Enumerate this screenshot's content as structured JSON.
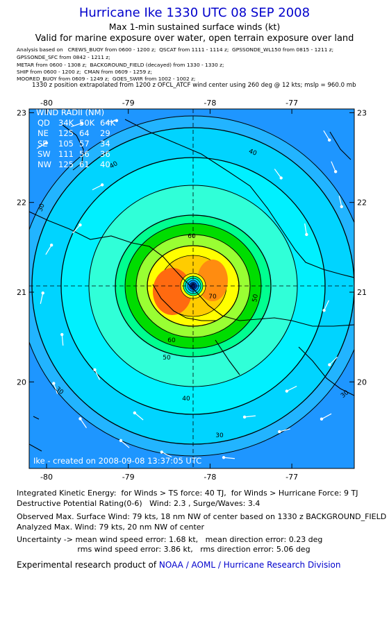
{
  "header": {
    "title": "Hurricane Ike 1330 UTC 08 SEP 2008",
    "subtitle": "Max 1-min sustained surface winds (kt)",
    "validity": "Valid for marine exposure over water, open terrain exposure over land",
    "analysis_lines": [
      "Analysis based on   CREWS_BUOY from 0600 - 1200 z;  QSCAT from 1111 - 1114 z;  GPSSONDE_WL150 from 0815 - 1211 z;",
      "GPSSONDE_SFC from 0842 - 1211 z;",
      "METAR from 0600 - 1308 z;  BACKGROUND_FIELD (decayed) from 1330 - 1330 z;",
      "SHIP from 0600 - 1200 z;  CMAN from 0609 - 1259 z;",
      "MOORED_BUOY from 0609 - 1249 z;  GOES_SWIR from 1002 - 1002 z;"
    ],
    "position_note": "1330 z position extrapolated from 1200 z OFCL_ATCF wind center using 260 deg @ 12 kts; mslp = 960.0 mb"
  },
  "map": {
    "lon_ticks": [
      -80,
      -79,
      -78,
      -77
    ],
    "lat_ticks": [
      23,
      22,
      21,
      20
    ],
    "wind_radii": {
      "title": "WIND RADII (NM)",
      "rows": [
        [
          "QD",
          "34K",
          "50K",
          "64K"
        ],
        [
          "NE",
          "125",
          "64",
          "29"
        ],
        [
          "SE",
          "105",
          "57",
          "34"
        ],
        [
          "SW",
          "111",
          "56",
          "36"
        ],
        [
          "NW",
          "125",
          "61",
          "40"
        ]
      ]
    },
    "contour_labels": [
      30,
      40,
      50,
      60,
      70,
      60,
      50,
      40,
      30,
      30,
      30,
      40
    ],
    "credit": "Ike - created on 2008-09-08 13:37:05 UTC"
  },
  "footer": {
    "lines": [
      "Integrated Kinetic Energy:  for Winds > TS force: 40 TJ,  for Winds > Hurricane Force: 9 TJ",
      "Destructive Potential Rating(0-6)   Wind: 2.3 , Surge/Waves: 3.4",
      "Observed Max. Surface Wind: 79 kts, 18 nm NW of center based on 1330 z BACKGROUND_FIELD",
      "Analyzed Max. Wind: 79 kts, 20 nm NW of center",
      "Uncertainty -> mean wind speed error: 1.68 kt,   mean direction error: 0.23 deg",
      "                         rms wind speed error: 3.86 kt,   rms direction error: 5.06 deg"
    ],
    "product_prefix": "Experimental research product of ",
    "product_link": "NOAA / AOML / Hurricane Research Division"
  }
}
